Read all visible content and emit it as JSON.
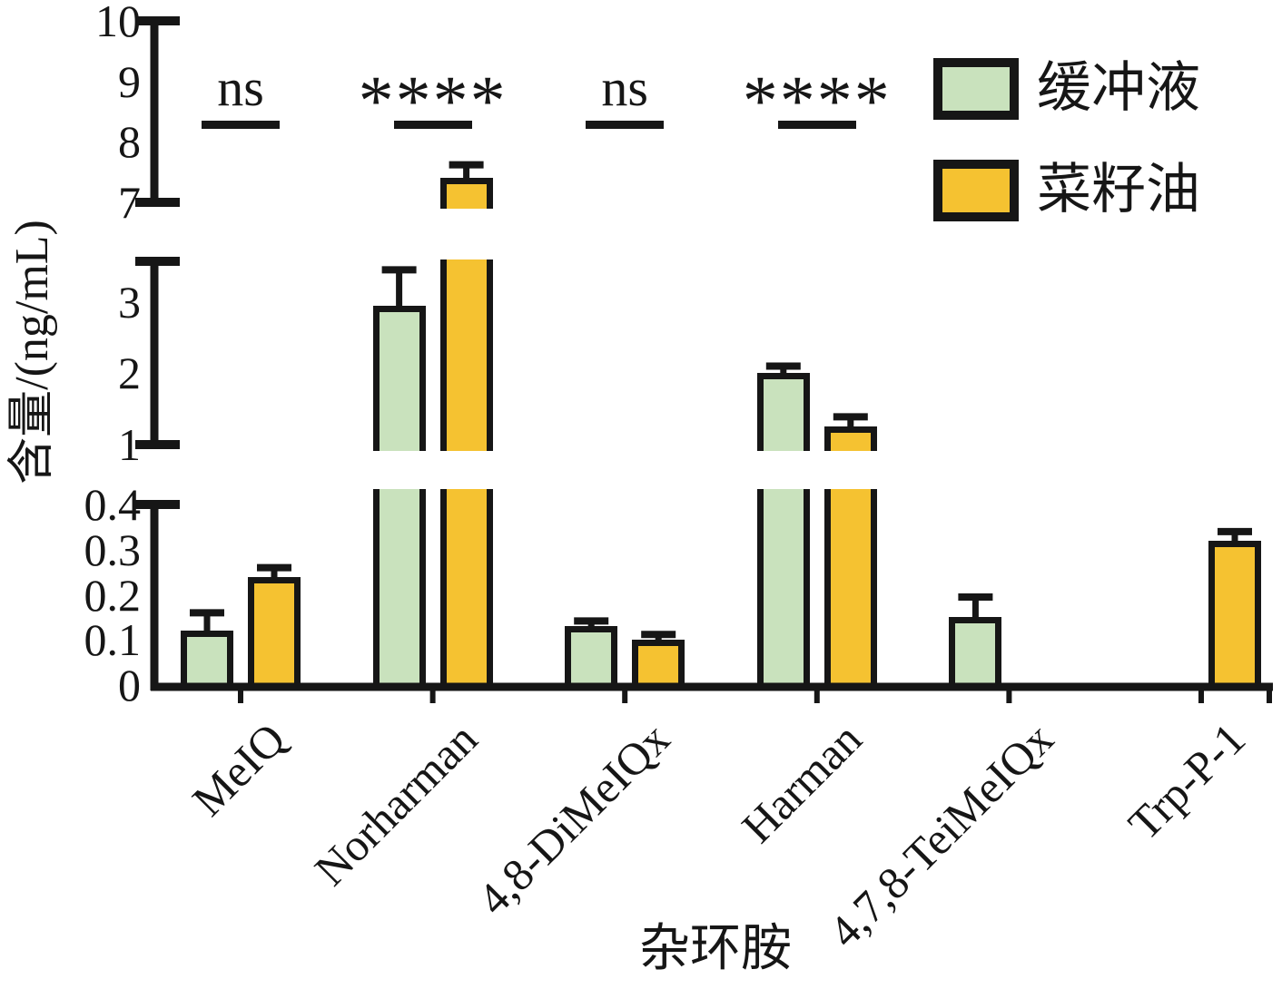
{
  "chart_data": {
    "type": "bar",
    "title": "",
    "xlabel": "杂环胺",
    "ylabel": "含量/(ng/mL)",
    "categories": [
      "MeIQ",
      "Norharman",
      "4,8-DiMeIQx",
      "Harman",
      "4,7,8-TeiMeIQx",
      "Trp-P-1"
    ],
    "series": [
      {
        "name": "缓冲液",
        "color": "#c9e2bd",
        "values": [
          0.12,
          2.95,
          0.13,
          2.0,
          0.15,
          null
        ],
        "errors": [
          0.04,
          0.5,
          0.012,
          0.1,
          0.045,
          null
        ]
      },
      {
        "name": "菜籽油",
        "color": "#f5c231",
        "values": [
          0.24,
          7.4,
          0.1,
          1.25,
          null,
          0.32
        ],
        "errors": [
          0.02,
          0.22,
          0.012,
          0.14,
          null,
          0.02
        ]
      }
    ],
    "annotations": [
      {
        "category": "MeIQ",
        "text": "ns"
      },
      {
        "category": "Norharman",
        "text": "****"
      },
      {
        "category": "4,8-DiMeIQx",
        "text": "ns"
      },
      {
        "category": "Harman",
        "text": "****"
      }
    ],
    "y_axis": {
      "broken": true,
      "grid": false,
      "segments": [
        {
          "range": [
            0,
            0.4
          ],
          "ticks": [
            0,
            0.1,
            0.2,
            0.3,
            0.4
          ]
        },
        {
          "range": [
            1,
            3.57
          ],
          "ticks": [
            1,
            2,
            3
          ]
        },
        {
          "range": [
            7,
            10
          ],
          "ticks": [
            7,
            8,
            9,
            10
          ]
        }
      ]
    },
    "legend": {
      "position": "top-right",
      "items": [
        "缓冲液",
        "菜籽油"
      ]
    }
  },
  "colors": {
    "buffer": "#c9e2bd",
    "oil": "#f5c231",
    "ink": "#161616"
  }
}
